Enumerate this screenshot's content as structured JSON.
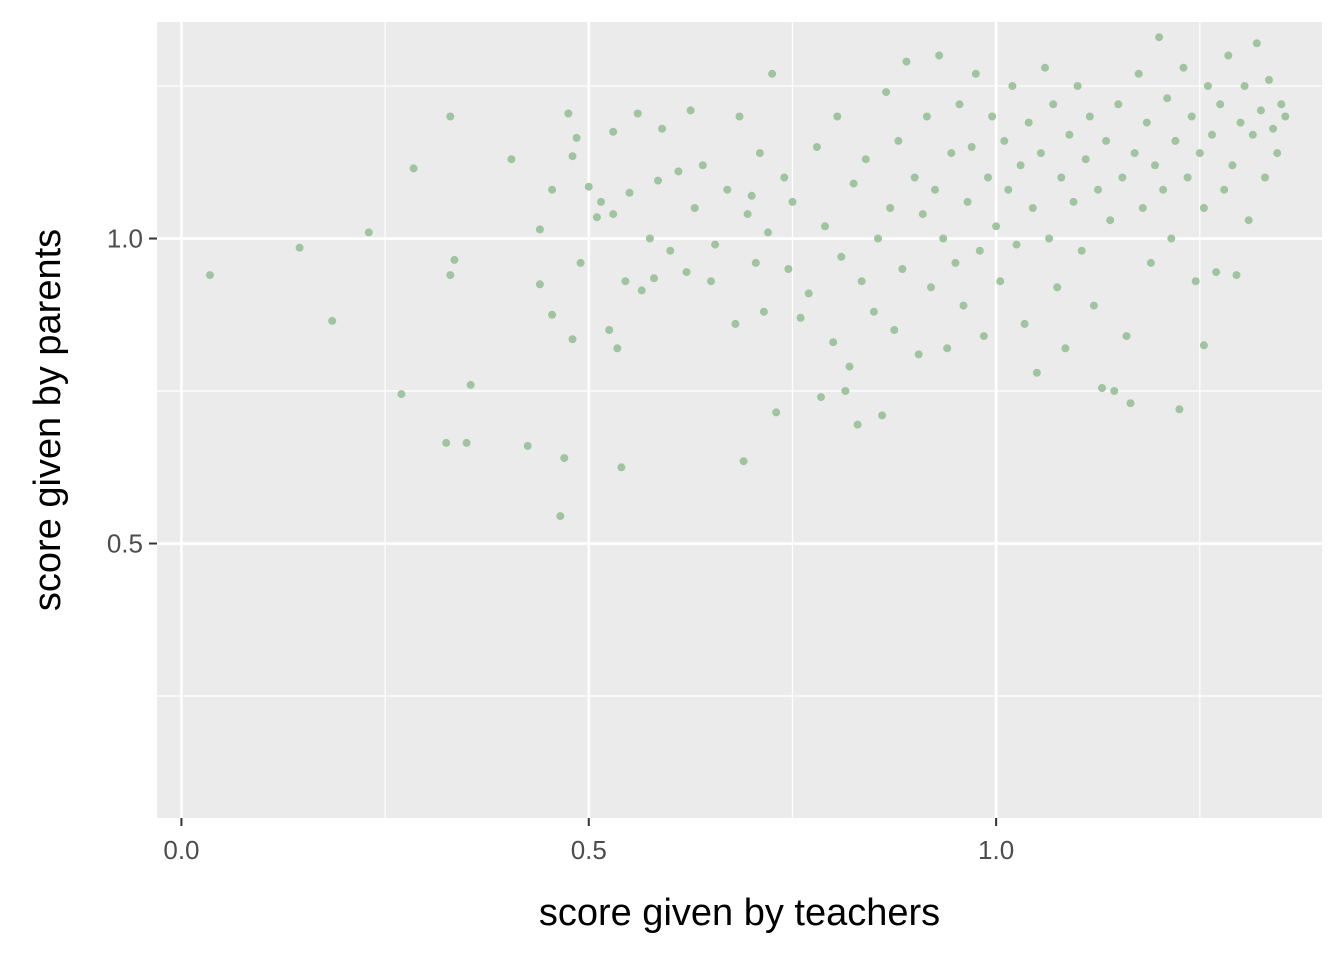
{
  "chart_data": {
    "type": "scatter",
    "title": "",
    "xlabel": "score given by teachers",
    "ylabel": "score given by parents",
    "xlim": [
      -0.03,
      1.4
    ],
    "ylim": [
      0.05,
      1.355
    ],
    "x_ticks": [
      0.0,
      0.5,
      1.0
    ],
    "x_tick_labels": [
      "0.0",
      "0.5",
      "1.0"
    ],
    "y_ticks": [
      0.5,
      1.0
    ],
    "y_tick_labels": [
      "0.5",
      "1.0"
    ],
    "grid": true,
    "panel_background": "#ebebeb",
    "point_color": "#a0c4a0",
    "series": [
      {
        "points": [
          [
            0.035,
            0.94
          ],
          [
            0.145,
            0.985
          ],
          [
            0.185,
            0.865
          ],
          [
            0.23,
            1.01
          ],
          [
            0.27,
            0.745
          ],
          [
            0.285,
            1.115
          ],
          [
            0.325,
            0.665
          ],
          [
            0.33,
            0.94
          ],
          [
            0.33,
            1.2
          ],
          [
            0.335,
            0.965
          ],
          [
            0.35,
            0.665
          ],
          [
            0.355,
            0.76
          ],
          [
            0.405,
            1.13
          ],
          [
            0.425,
            0.66
          ],
          [
            0.44,
            1.015
          ],
          [
            0.44,
            0.925
          ],
          [
            0.455,
            0.875
          ],
          [
            0.455,
            1.08
          ],
          [
            0.465,
            0.545
          ],
          [
            0.47,
            0.64
          ],
          [
            0.475,
            1.205
          ],
          [
            0.48,
            0.835
          ],
          [
            0.48,
            1.135
          ],
          [
            0.485,
            1.165
          ],
          [
            0.49,
            0.96
          ],
          [
            0.5,
            1.085
          ],
          [
            0.51,
            1.035
          ],
          [
            0.515,
            1.06
          ],
          [
            0.525,
            0.85
          ],
          [
            0.53,
            1.175
          ],
          [
            0.53,
            1.04
          ],
          [
            0.535,
            0.82
          ],
          [
            0.54,
            0.625
          ],
          [
            0.545,
            0.93
          ],
          [
            0.55,
            1.075
          ],
          [
            0.56,
            1.205
          ],
          [
            0.565,
            0.915
          ],
          [
            0.575,
            1.0
          ],
          [
            0.58,
            0.935
          ],
          [
            0.585,
            1.095
          ],
          [
            0.59,
            1.18
          ],
          [
            0.6,
            0.98
          ],
          [
            0.61,
            1.11
          ],
          [
            0.62,
            0.945
          ],
          [
            0.625,
            1.21
          ],
          [
            0.63,
            1.05
          ],
          [
            0.64,
            1.12
          ],
          [
            0.65,
            0.93
          ],
          [
            0.655,
            0.99
          ],
          [
            0.67,
            1.08
          ],
          [
            0.68,
            0.86
          ],
          [
            0.685,
            1.2
          ],
          [
            0.69,
            0.635
          ],
          [
            0.695,
            1.04
          ],
          [
            0.7,
            1.07
          ],
          [
            0.705,
            0.96
          ],
          [
            0.71,
            1.14
          ],
          [
            0.715,
            0.88
          ],
          [
            0.72,
            1.01
          ],
          [
            0.725,
            1.27
          ],
          [
            0.73,
            0.715
          ],
          [
            0.74,
            1.1
          ],
          [
            0.745,
            0.95
          ],
          [
            0.75,
            1.06
          ],
          [
            0.76,
            0.87
          ],
          [
            0.77,
            0.91
          ],
          [
            0.78,
            1.15
          ],
          [
            0.785,
            0.74
          ],
          [
            0.79,
            1.02
          ],
          [
            0.8,
            0.83
          ],
          [
            0.805,
            1.2
          ],
          [
            0.81,
            0.97
          ],
          [
            0.815,
            0.75
          ],
          [
            0.82,
            0.79
          ],
          [
            0.825,
            1.09
          ],
          [
            0.83,
            0.695
          ],
          [
            0.835,
            0.93
          ],
          [
            0.84,
            1.13
          ],
          [
            0.85,
            0.88
          ],
          [
            0.855,
            1.0
          ],
          [
            0.86,
            0.71
          ],
          [
            0.865,
            1.24
          ],
          [
            0.87,
            1.05
          ],
          [
            0.875,
            0.85
          ],
          [
            0.88,
            1.16
          ],
          [
            0.885,
            0.95
          ],
          [
            0.89,
            1.29
          ],
          [
            0.9,
            1.1
          ],
          [
            0.905,
            0.81
          ],
          [
            0.91,
            1.04
          ],
          [
            0.915,
            1.2
          ],
          [
            0.92,
            0.92
          ],
          [
            0.925,
            1.08
          ],
          [
            0.93,
            1.3
          ],
          [
            0.935,
            1.0
          ],
          [
            0.94,
            0.82
          ],
          [
            0.945,
            1.14
          ],
          [
            0.95,
            0.96
          ],
          [
            0.955,
            1.22
          ],
          [
            0.96,
            0.89
          ],
          [
            0.965,
            1.06
          ],
          [
            0.97,
            1.15
          ],
          [
            0.975,
            1.27
          ],
          [
            0.98,
            0.98
          ],
          [
            0.985,
            0.84
          ],
          [
            0.99,
            1.1
          ],
          [
            0.995,
            1.2
          ],
          [
            1.0,
            1.02
          ],
          [
            1.005,
            0.93
          ],
          [
            1.01,
            1.16
          ],
          [
            1.015,
            1.08
          ],
          [
            1.02,
            1.25
          ],
          [
            1.025,
            0.99
          ],
          [
            1.03,
            1.12
          ],
          [
            1.035,
            0.86
          ],
          [
            1.04,
            1.19
          ],
          [
            1.045,
            1.05
          ],
          [
            1.05,
            0.78
          ],
          [
            1.055,
            1.14
          ],
          [
            1.06,
            1.28
          ],
          [
            1.065,
            1.0
          ],
          [
            1.07,
            1.22
          ],
          [
            1.075,
            0.92
          ],
          [
            1.08,
            1.1
          ],
          [
            1.085,
            0.82
          ],
          [
            1.09,
            1.17
          ],
          [
            1.095,
            1.06
          ],
          [
            1.1,
            1.25
          ],
          [
            1.105,
            0.98
          ],
          [
            1.11,
            1.13
          ],
          [
            1.115,
            1.2
          ],
          [
            1.12,
            0.89
          ],
          [
            1.125,
            1.08
          ],
          [
            1.13,
            0.755
          ],
          [
            1.135,
            1.16
          ],
          [
            1.14,
            1.03
          ],
          [
            1.145,
            0.75
          ],
          [
            1.15,
            1.22
          ],
          [
            1.155,
            1.1
          ],
          [
            1.16,
            0.84
          ],
          [
            1.165,
            0.73
          ],
          [
            1.17,
            1.14
          ],
          [
            1.175,
            1.27
          ],
          [
            1.18,
            1.05
          ],
          [
            1.185,
            1.19
          ],
          [
            1.19,
            0.96
          ],
          [
            1.195,
            1.12
          ],
          [
            1.2,
            1.33
          ],
          [
            1.205,
            1.08
          ],
          [
            1.21,
            1.23
          ],
          [
            1.215,
            1.0
          ],
          [
            1.22,
            1.16
          ],
          [
            1.225,
            0.72
          ],
          [
            1.23,
            1.28
          ],
          [
            1.235,
            1.1
          ],
          [
            1.24,
            1.2
          ],
          [
            1.245,
            0.93
          ],
          [
            1.25,
            1.14
          ],
          [
            1.255,
            1.05
          ],
          [
            1.26,
            1.25
          ],
          [
            1.265,
            1.17
          ],
          [
            1.27,
            0.945
          ],
          [
            1.255,
            0.825
          ],
          [
            1.275,
            1.22
          ],
          [
            1.28,
            1.08
          ],
          [
            1.285,
            1.3
          ],
          [
            1.29,
            1.12
          ],
          [
            1.295,
            0.94
          ],
          [
            1.3,
            1.19
          ],
          [
            1.305,
            1.25
          ],
          [
            1.31,
            1.03
          ],
          [
            1.315,
            1.17
          ],
          [
            1.32,
            1.32
          ],
          [
            1.325,
            1.21
          ],
          [
            1.33,
            1.1
          ],
          [
            1.335,
            1.26
          ],
          [
            1.34,
            1.18
          ],
          [
            1.345,
            1.14
          ],
          [
            1.35,
            1.22
          ],
          [
            1.355,
            1.2
          ]
        ]
      }
    ]
  }
}
